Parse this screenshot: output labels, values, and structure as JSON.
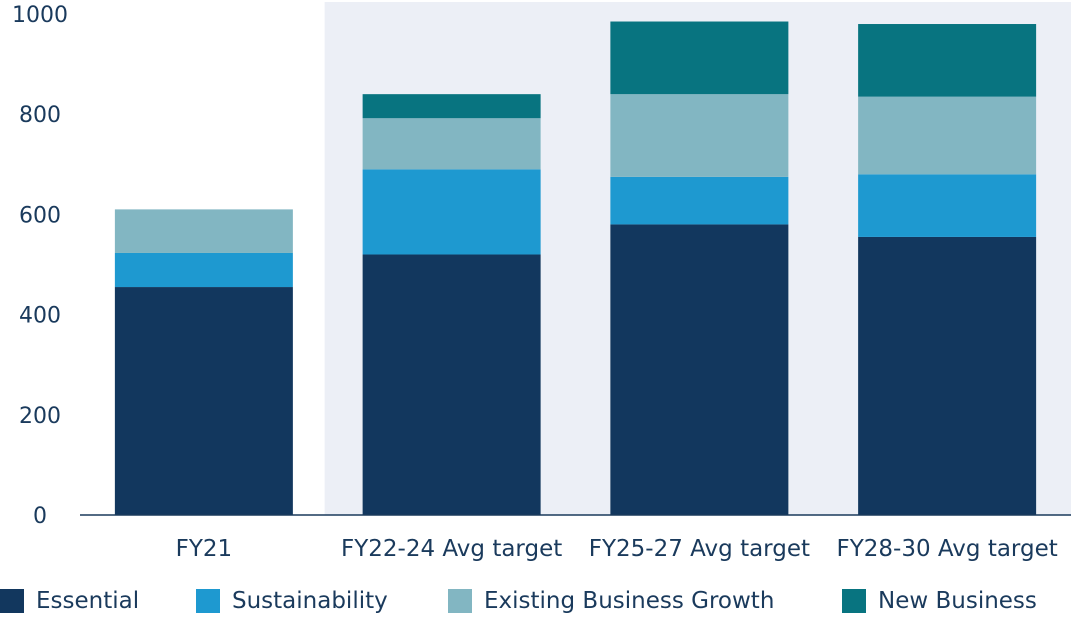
{
  "chart_data": {
    "type": "bar",
    "stacked": true,
    "categories": [
      "FY21",
      "FY22-24 Avg target",
      "FY25-27 Avg target",
      "FY28-30 Avg target"
    ],
    "highlighted_categories": [
      "FY22-24 Avg target",
      "FY25-27 Avg target",
      "FY28-30 Avg target"
    ],
    "series": [
      {
        "name": "Essential",
        "color": "#12375e",
        "values": [
          455,
          520,
          580,
          555
        ]
      },
      {
        "name": "Sustainability",
        "color": "#1e99d0",
        "values": [
          68,
          170,
          95,
          125
        ]
      },
      {
        "name": "Existing Business Growth",
        "color": "#82b6c2",
        "values": [
          87,
          102,
          165,
          155
        ]
      },
      {
        "name": "New Business",
        "color": "#087480",
        "values": [
          0,
          48,
          145,
          145
        ]
      }
    ],
    "ylim": [
      0,
      1000
    ],
    "yticks": [
      0,
      200,
      400,
      600,
      800,
      1000
    ],
    "xlabel": "",
    "ylabel": "",
    "title": "",
    "grid": false,
    "legend_position": "bottom",
    "highlight_color": "#eceff6",
    "axis_color": "#1a3a5c"
  }
}
